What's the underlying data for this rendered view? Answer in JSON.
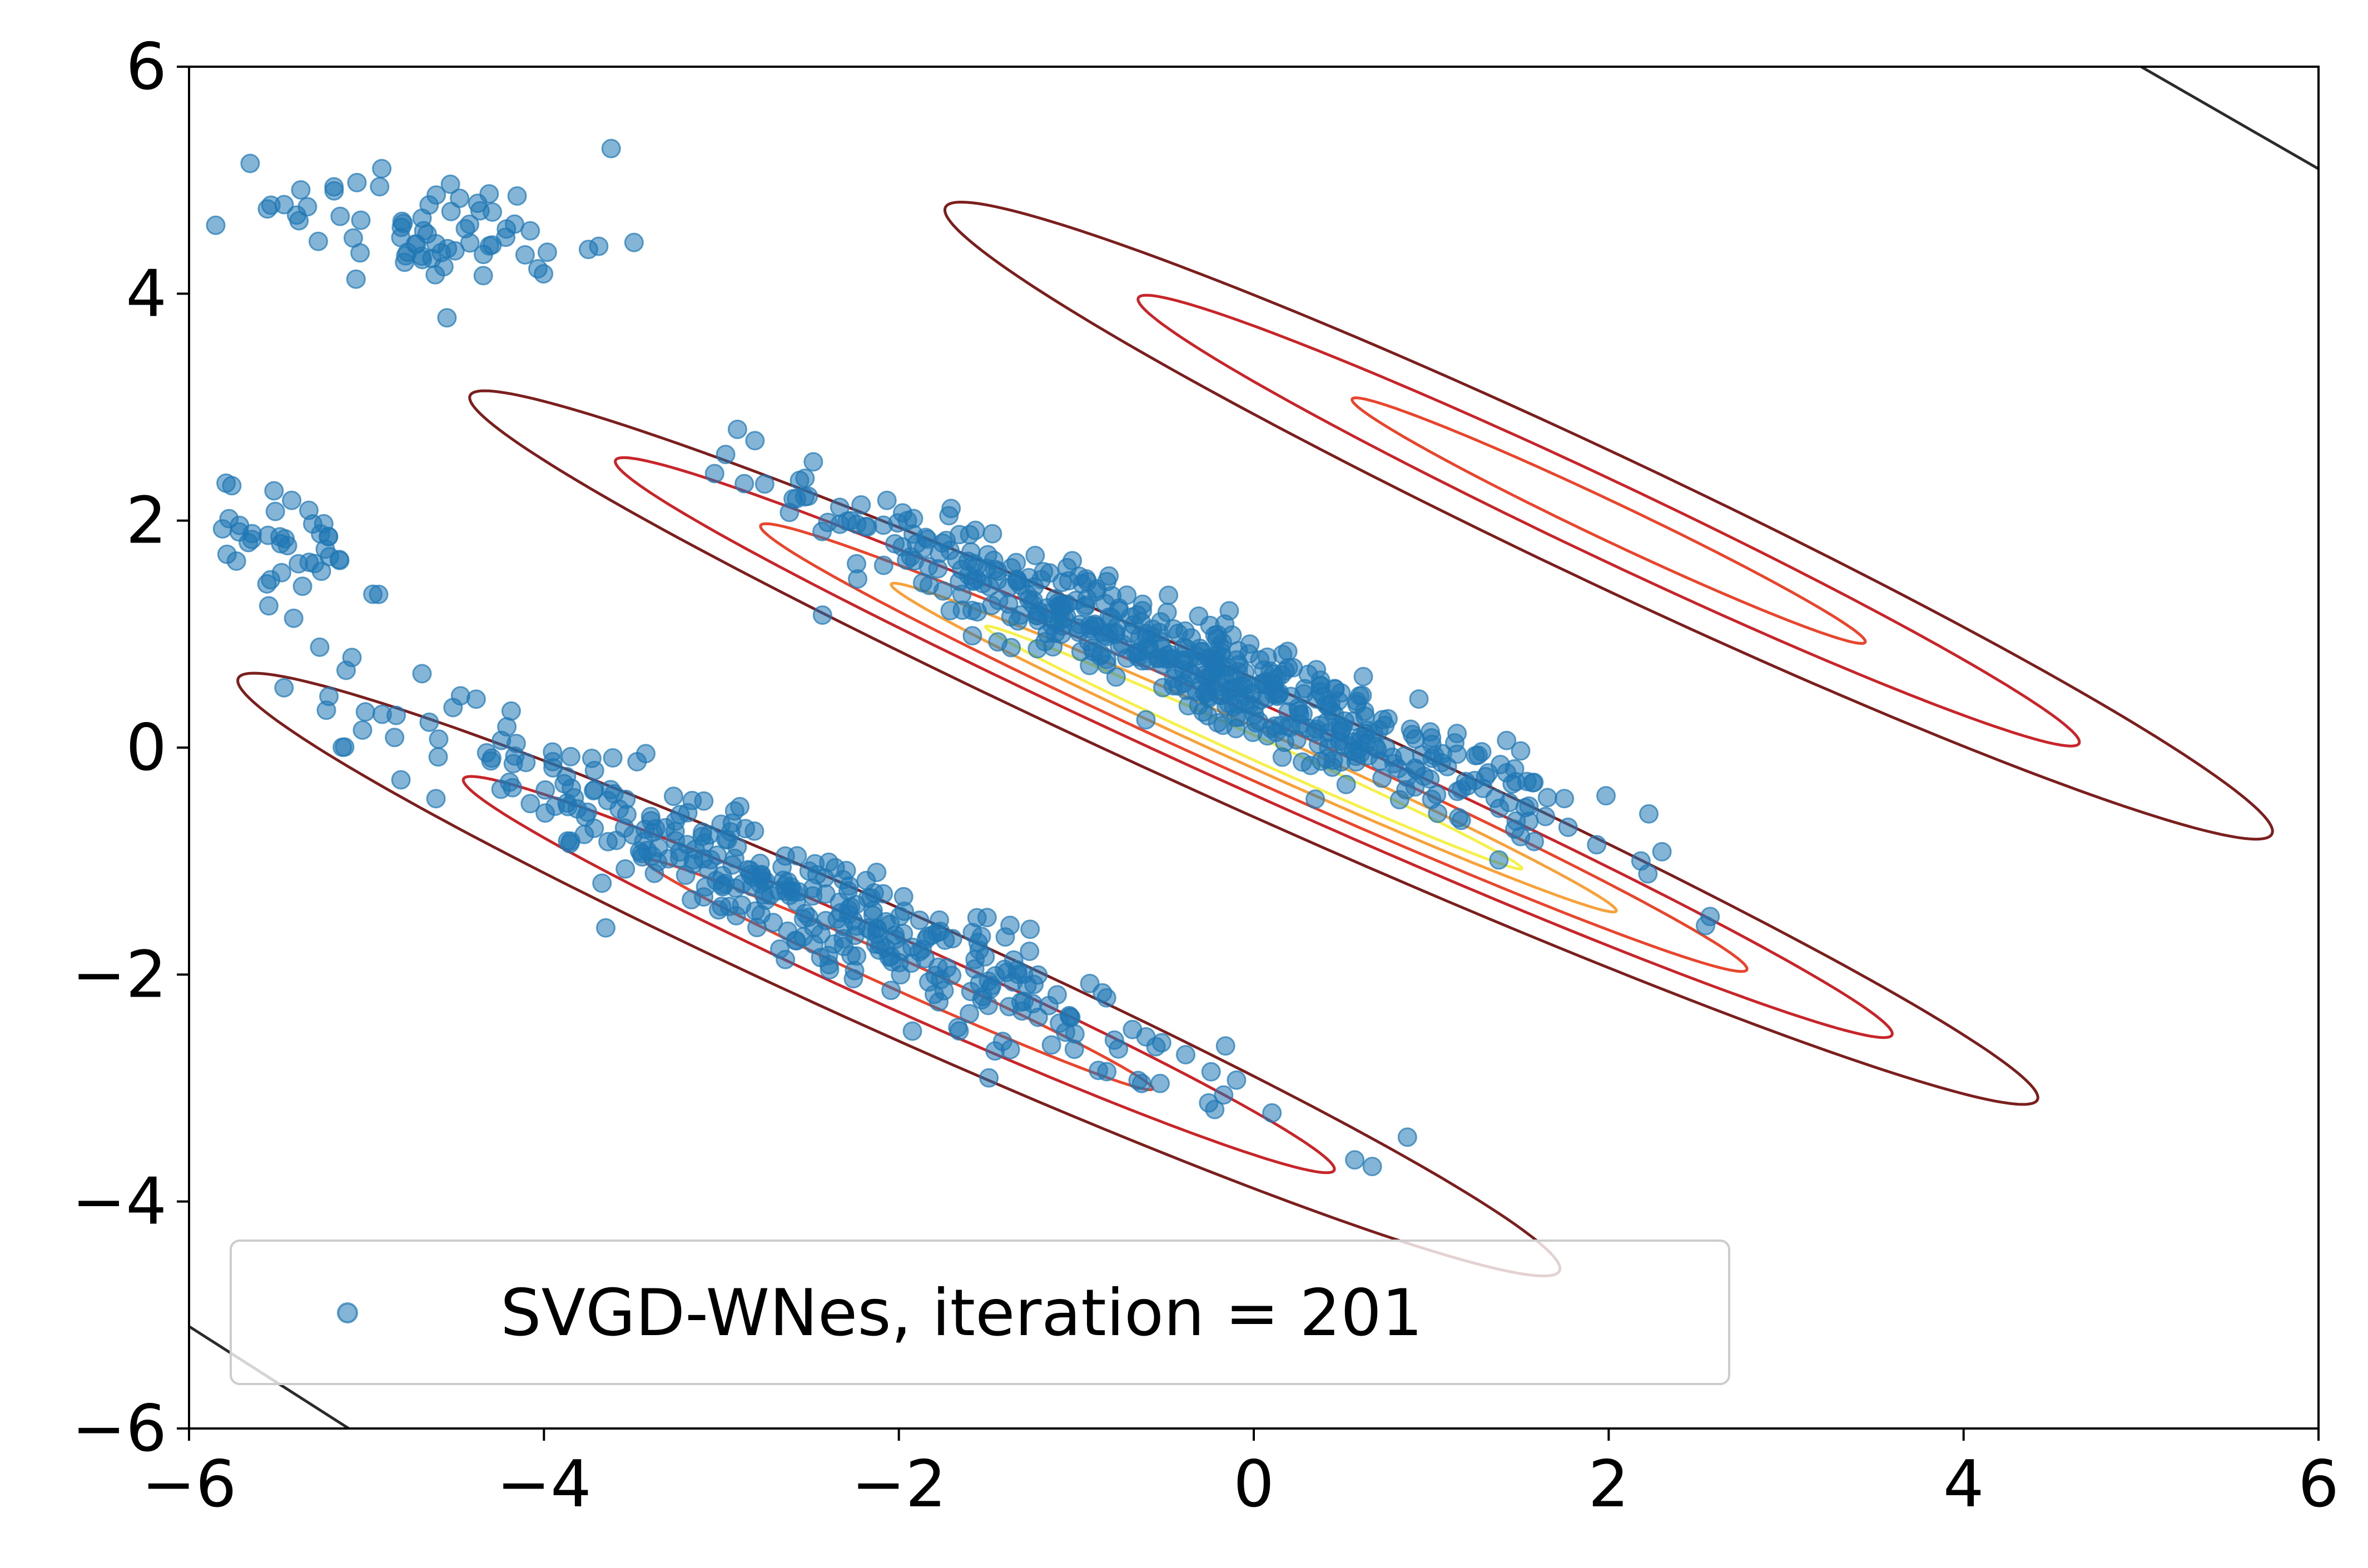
{
  "chart_data": {
    "type": "scatter",
    "xlim": [
      -6,
      6
    ],
    "ylim": [
      -6,
      6
    ],
    "x_ticks": [
      "−6",
      "−4",
      "−2",
      "0",
      "2",
      "4",
      "6"
    ],
    "y_ticks": [
      "6",
      "4",
      "2",
      "0",
      "−2",
      "−4",
      "−6"
    ],
    "grid": false,
    "legend": {
      "placement": "lower-left",
      "label": "SVGD-WNes, iteration = 201"
    },
    "scatter_series": {
      "name": "SVGD-WNes, iteration = 201",
      "color": "#1f77b4",
      "alpha": 0.55,
      "point_count": 1000,
      "clusters": [
        {
          "center": [
            -0.3,
            0.7
          ],
          "direction": [
            1,
            -0.7
          ],
          "sd_along": 1.3,
          "sd_across": 0.2,
          "count": 520
        },
        {
          "center": [
            -2.6,
            -1.3
          ],
          "direction": [
            1,
            -0.72
          ],
          "sd_along": 1.35,
          "sd_across": 0.22,
          "count": 360
        },
        {
          "center": [
            -4.6,
            4.6
          ],
          "direction": [
            1,
            -0.2
          ],
          "sd_along": 0.5,
          "sd_across": 0.25,
          "count": 70
        },
        {
          "center": [
            -5.6,
            1.8
          ],
          "direction": [
            1,
            -0.6
          ],
          "sd_along": 0.35,
          "sd_across": 0.25,
          "count": 50
        }
      ]
    },
    "contours": [
      {
        "center": [
          0.0,
          0.0
        ],
        "direction": [
          1,
          -0.707
        ],
        "levels": [
          {
            "half_length": 5.4,
            "half_width": 0.5,
            "color": "#7b1e1e"
          },
          {
            "half_length": 4.4,
            "half_width": 0.34,
            "color": "#c8252a"
          },
          {
            "half_length": 3.4,
            "half_width": 0.24,
            "color": "#e8452c"
          },
          {
            "half_length": 2.5,
            "half_width": 0.15,
            "color": "#f7a13a"
          },
          {
            "half_length": 1.85,
            "half_width": 0.09,
            "color": "#f5f04a"
          }
        ]
      },
      {
        "center": [
          -2.0,
          -2.0
        ],
        "direction": [
          1,
          -0.707
        ],
        "levels": [
          {
            "half_length": 4.55,
            "half_width": 0.48,
            "color": "#7b1e1e"
          },
          {
            "half_length": 3.0,
            "half_width": 0.27,
            "color": "#c8252a"
          },
          {
            "half_length": 1.75,
            "half_width": 0.12,
            "color": "#e8452c"
          }
        ]
      },
      {
        "center": [
          2.0,
          2.0
        ],
        "direction": [
          1,
          -0.745
        ],
        "levels": [
          {
            "half_length": 4.65,
            "half_width": 0.5,
            "color": "#7b1e1e"
          },
          {
            "half_length": 3.3,
            "half_width": 0.3,
            "color": "#c8252a"
          },
          {
            "half_length": 1.8,
            "half_width": 0.15,
            "color": "#e8452c"
          }
        ]
      }
    ],
    "corner_lines": [
      {
        "points": [
          [
            5.0,
            6.0
          ],
          [
            6.0,
            5.1
          ]
        ],
        "color": "#2b2b2b"
      },
      {
        "points": [
          [
            -6.0,
            -5.1
          ],
          [
            -5.1,
            -6.0
          ]
        ],
        "color": "#2b2b2b"
      }
    ]
  }
}
